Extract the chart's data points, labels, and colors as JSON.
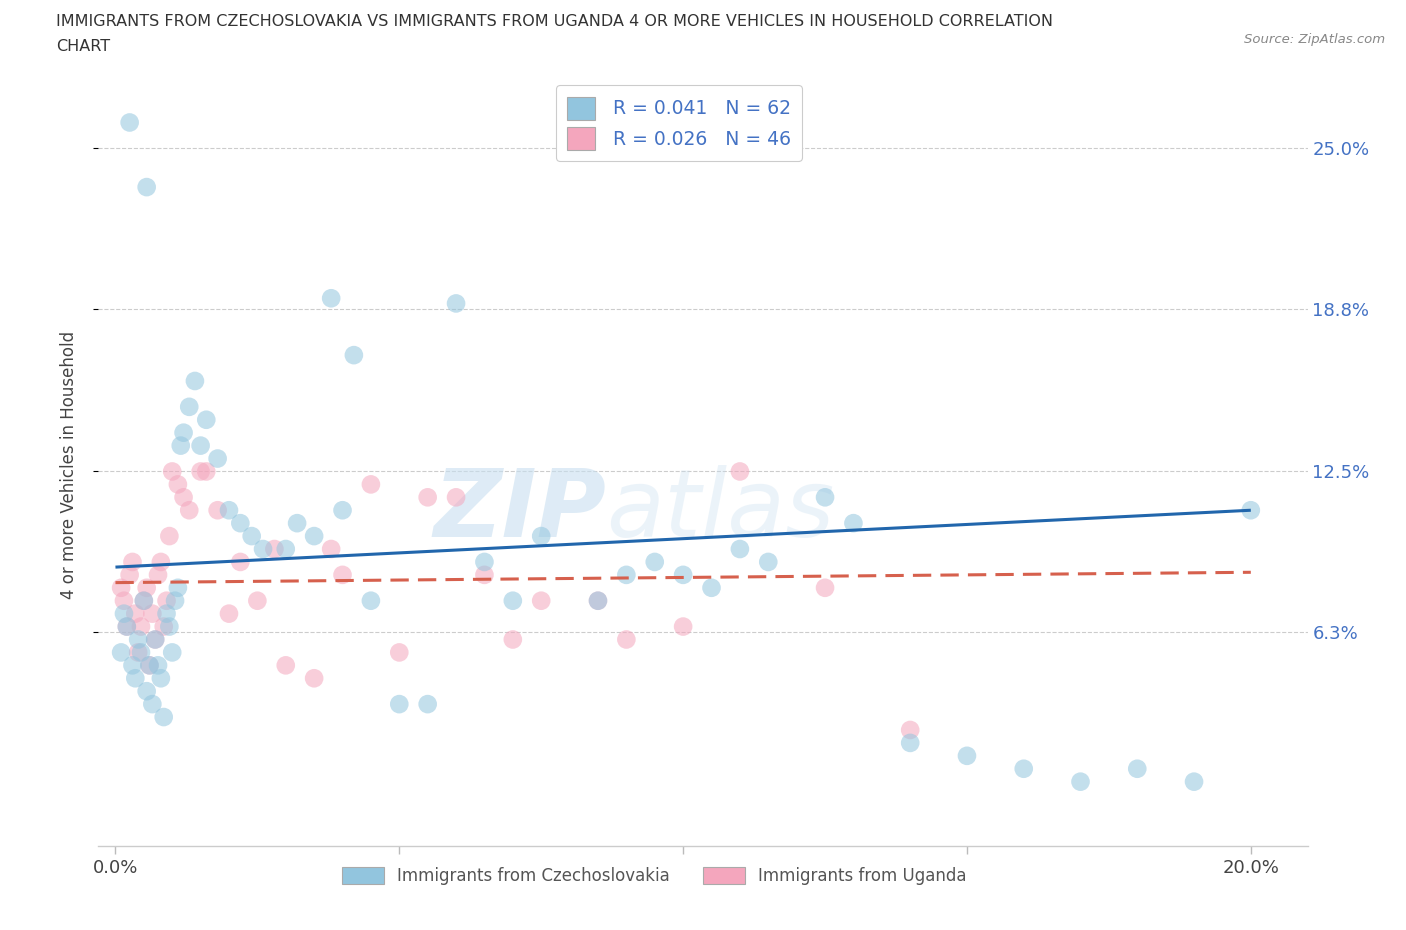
{
  "title_line1": "IMMIGRANTS FROM CZECHOSLOVAKIA VS IMMIGRANTS FROM UGANDA 4 OR MORE VEHICLES IN HOUSEHOLD CORRELATION",
  "title_line2": "CHART",
  "source": "Source: ZipAtlas.com",
  "ylabel_label": "4 or more Vehicles in Household",
  "ytick_labels": [
    "6.3%",
    "12.5%",
    "18.8%",
    "25.0%"
  ],
  "ytick_values": [
    6.3,
    12.5,
    18.8,
    25.0
  ],
  "xlim": [
    -0.3,
    21.0
  ],
  "ylim": [
    -2.0,
    27.5
  ],
  "r_czech": 0.041,
  "n_czech": 62,
  "r_uganda": 0.026,
  "n_uganda": 46,
  "color_czech": "#92c5de",
  "color_uganda": "#f4a6bd",
  "trendline_czech_color": "#2166ac",
  "trendline_uganda_color": "#d6604d",
  "watermark_zip": "ZIP",
  "watermark_atlas": "atlas",
  "legend_label_czech": "Immigrants from Czechoslovakia",
  "legend_label_uganda": "Immigrants from Uganda",
  "czech_x": [
    0.1,
    0.15,
    0.2,
    0.3,
    0.35,
    0.4,
    0.45,
    0.5,
    0.55,
    0.6,
    0.65,
    0.7,
    0.75,
    0.8,
    0.85,
    0.9,
    0.95,
    1.0,
    1.05,
    1.1,
    1.15,
    1.2,
    1.3,
    1.4,
    1.5,
    1.6,
    1.8,
    2.0,
    2.2,
    2.4,
    2.6,
    3.0,
    3.2,
    3.5,
    4.0,
    4.5,
    5.0,
    5.5,
    6.5,
    7.0,
    8.5,
    9.5,
    10.5,
    11.0,
    11.5,
    12.5,
    3.8,
    4.2,
    6.0,
    7.5,
    9.0,
    10.0,
    13.0,
    14.0,
    15.0,
    16.0,
    17.0,
    18.0,
    19.0,
    20.0,
    0.25,
    0.55
  ],
  "czech_y": [
    5.5,
    7.0,
    6.5,
    5.0,
    4.5,
    6.0,
    5.5,
    7.5,
    4.0,
    5.0,
    3.5,
    6.0,
    5.0,
    4.5,
    3.0,
    7.0,
    6.5,
    5.5,
    7.5,
    8.0,
    13.5,
    14.0,
    15.0,
    16.0,
    13.5,
    14.5,
    13.0,
    11.0,
    10.5,
    10.0,
    9.5,
    9.5,
    10.5,
    10.0,
    11.0,
    7.5,
    3.5,
    3.5,
    9.0,
    7.5,
    7.5,
    9.0,
    8.0,
    9.5,
    9.0,
    11.5,
    19.2,
    17.0,
    19.0,
    10.0,
    8.5,
    8.5,
    10.5,
    2.0,
    1.5,
    1.0,
    0.5,
    1.0,
    0.5,
    11.0,
    26.0,
    23.5
  ],
  "uganda_x": [
    0.1,
    0.15,
    0.2,
    0.25,
    0.3,
    0.35,
    0.4,
    0.45,
    0.5,
    0.55,
    0.6,
    0.65,
    0.7,
    0.75,
    0.8,
    0.85,
    0.9,
    1.0,
    1.1,
    1.2,
    1.5,
    1.8,
    2.0,
    2.5,
    3.0,
    3.5,
    4.5,
    5.5,
    6.0,
    7.5,
    8.5,
    10.0,
    12.5,
    14.0,
    0.95,
    1.3,
    1.6,
    2.2,
    2.8,
    3.8,
    4.0,
    5.0,
    6.5,
    7.0,
    9.0,
    11.0
  ],
  "uganda_y": [
    8.0,
    7.5,
    6.5,
    8.5,
    9.0,
    7.0,
    5.5,
    6.5,
    7.5,
    8.0,
    5.0,
    7.0,
    6.0,
    8.5,
    9.0,
    6.5,
    7.5,
    12.5,
    12.0,
    11.5,
    12.5,
    11.0,
    7.0,
    7.5,
    5.0,
    4.5,
    12.0,
    11.5,
    11.5,
    7.5,
    7.5,
    6.5,
    8.0,
    2.5,
    10.0,
    11.0,
    12.5,
    9.0,
    9.5,
    9.5,
    8.5,
    5.5,
    8.5,
    6.0,
    6.0,
    12.5
  ],
  "czech_trend_x0": 0.0,
  "czech_trend_y0": 8.8,
  "czech_trend_x1": 20.0,
  "czech_trend_y1": 11.0,
  "uganda_trend_x0": 0.0,
  "uganda_trend_y0": 8.2,
  "uganda_trend_x1": 20.0,
  "uganda_trend_y1": 8.6
}
